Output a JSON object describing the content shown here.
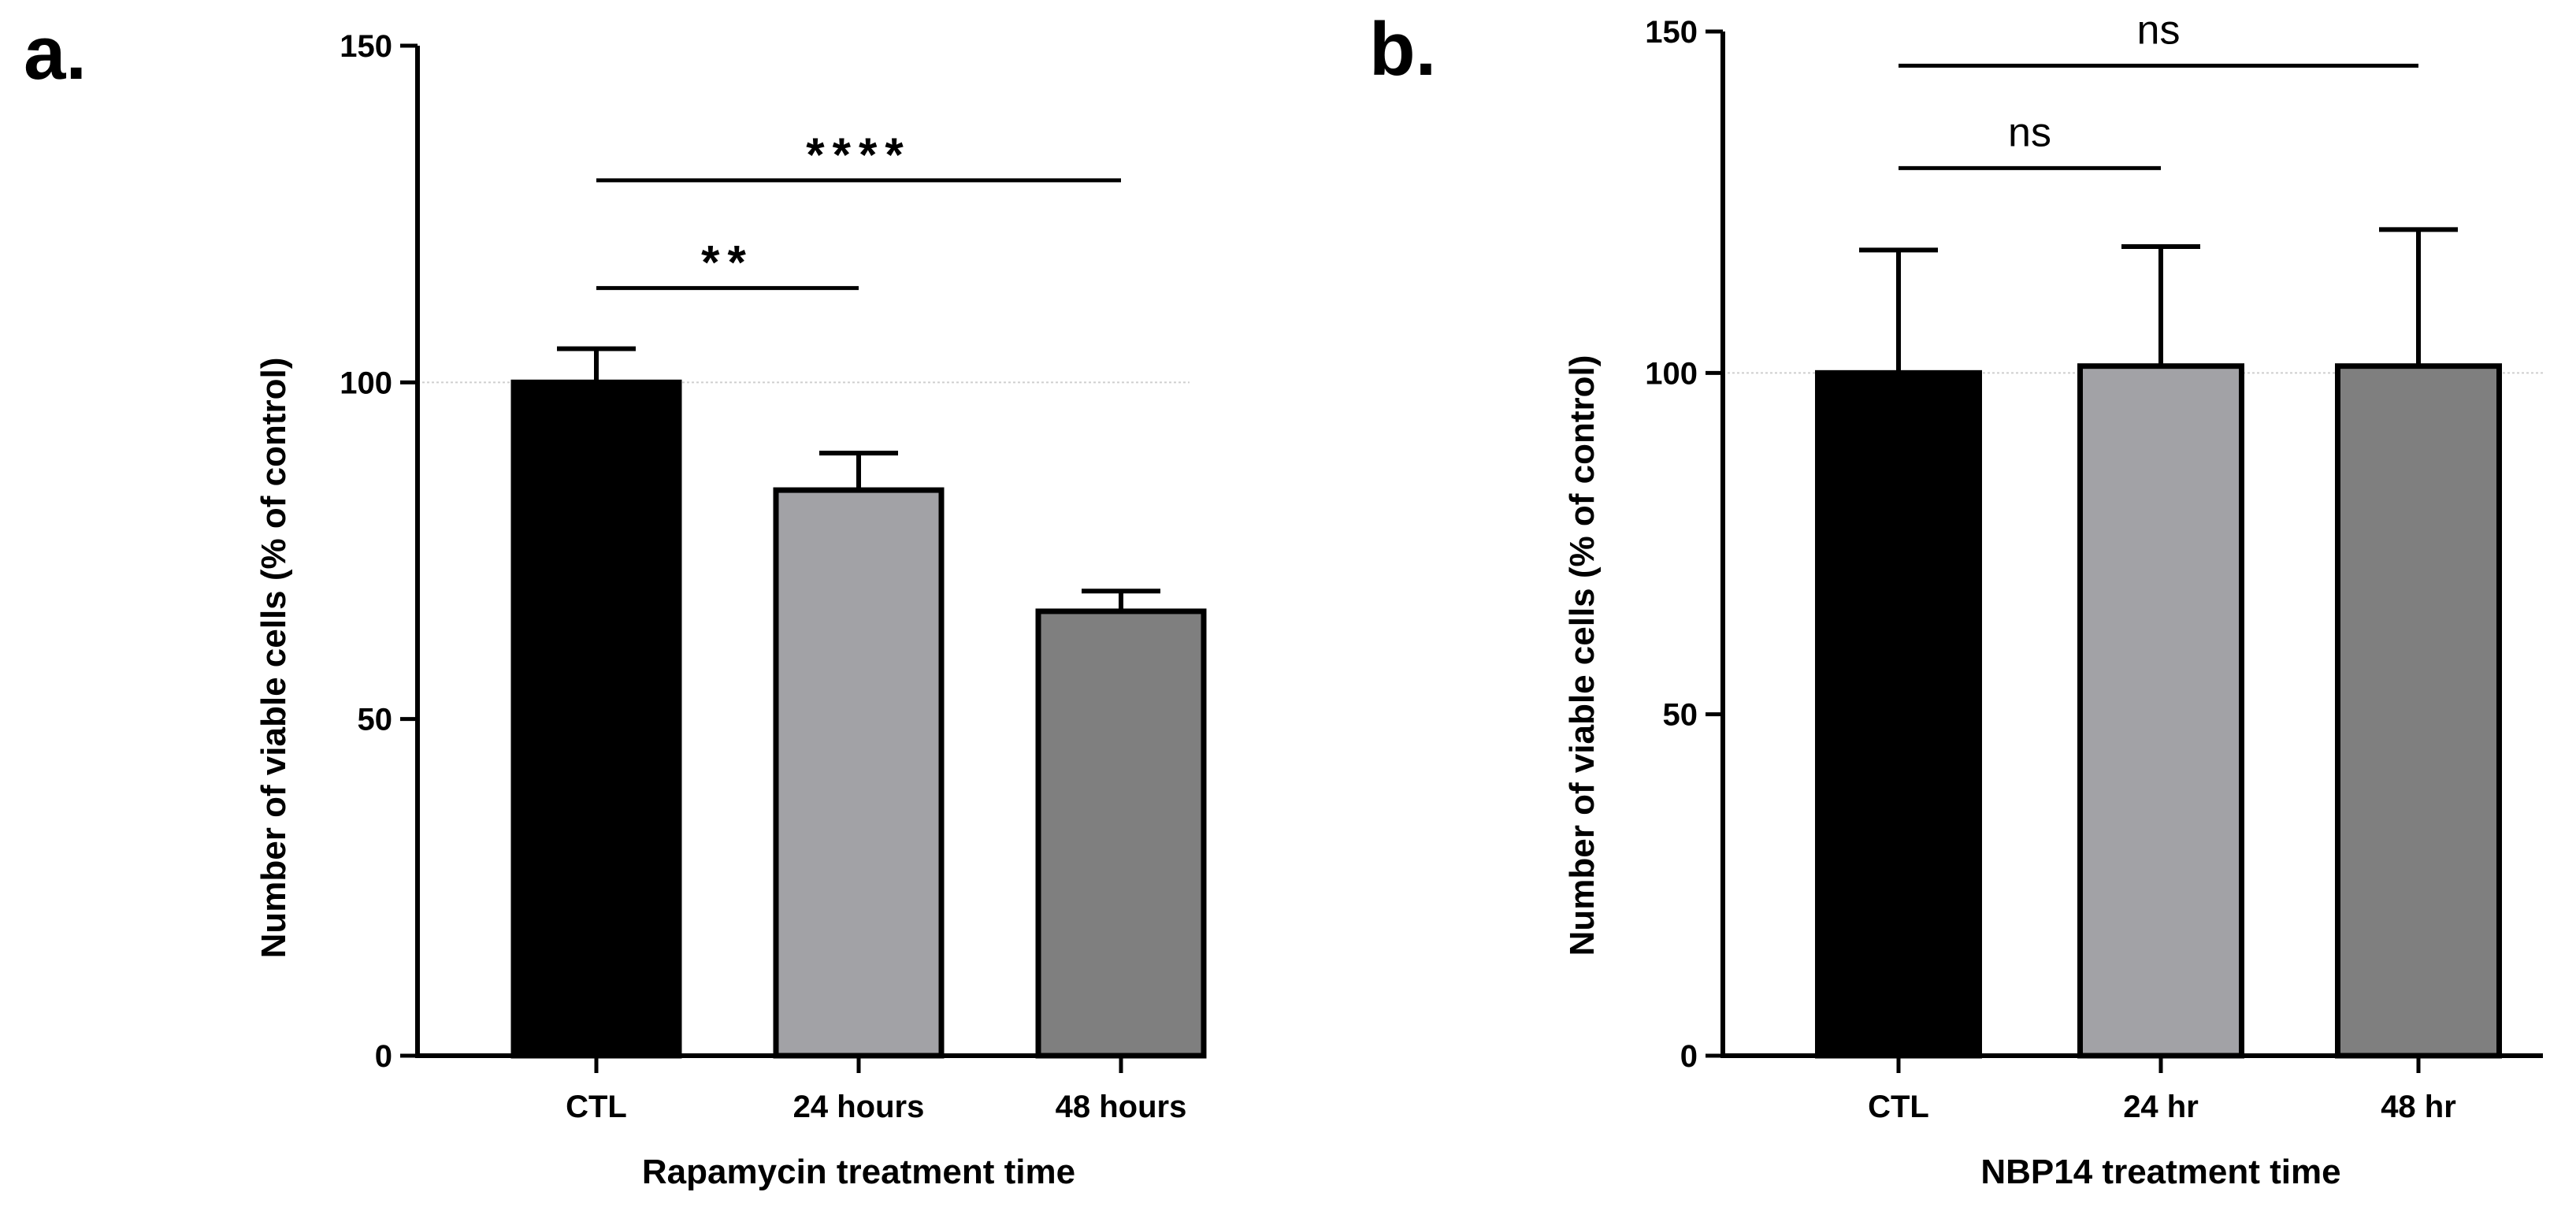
{
  "chart_data": [
    {
      "type": "bar",
      "panel_label": "a.",
      "title": "",
      "xlabel": "Rapamycin treatment time",
      "ylabel": "Number of viable cells (% of control)",
      "categories": [
        "CTL",
        "24 hours",
        "48 hours"
      ],
      "values": [
        100,
        84,
        66
      ],
      "error_upper": [
        105,
        89.5,
        69
      ],
      "bar_colors": [
        "#000000",
        "#a2a2a6",
        "#7f7f7f"
      ],
      "ylim": [
        0,
        150
      ],
      "yticks": [
        "0",
        "50",
        "100",
        "150"
      ],
      "reference_line": 100,
      "significance": [
        {
          "from": "CTL",
          "to": "24 hours",
          "label": "**",
          "y": 114
        },
        {
          "from": "CTL",
          "to": "48 hours",
          "label": "****",
          "y": 130
        }
      ]
    },
    {
      "type": "bar",
      "panel_label": "b.",
      "title": "",
      "xlabel": "NBP14 treatment time",
      "ylabel": "Number of viable cells (% of control)",
      "categories": [
        "CTL",
        "24 hr",
        "48 hr"
      ],
      "values": [
        100,
        101,
        101
      ],
      "error_upper": [
        118,
        118.5,
        121
      ],
      "bar_colors": [
        "#000000",
        "#a2a2a6",
        "#7f7f7f"
      ],
      "ylim": [
        0,
        150
      ],
      "yticks": [
        "0",
        "50",
        "100",
        "150"
      ],
      "reference_line": 100,
      "significance": [
        {
          "from": "CTL",
          "to": "24 hr",
          "label": "ns",
          "y": 130
        },
        {
          "from": "CTL",
          "to": "48 hr",
          "label": "ns",
          "y": 145
        }
      ]
    }
  ]
}
